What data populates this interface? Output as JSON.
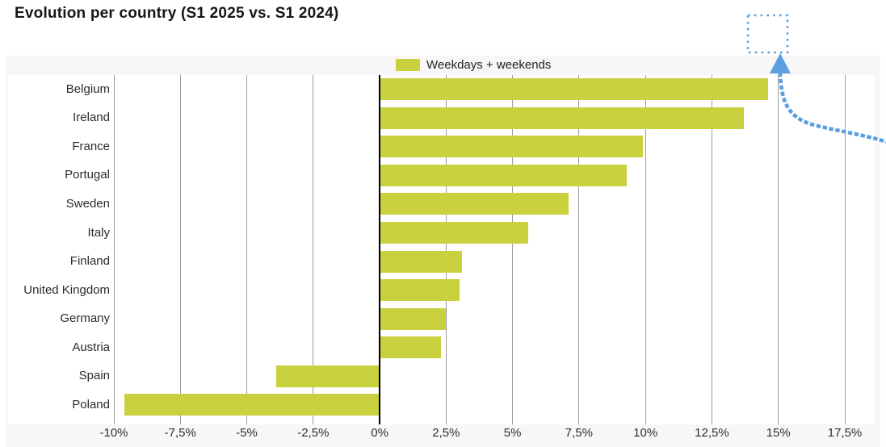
{
  "title": "Evolution per country (S1 2025 vs. S1 2024)",
  "legend": {
    "label": "Weekdays + weekends",
    "swatch_color": "#c9d13e"
  },
  "colors": {
    "bar": "#c9d13e",
    "axis": "#000000",
    "gridline": "#9c9c9c",
    "panel_bg": "#f7f7f7",
    "annotation_blue": "#5b9fe0",
    "text": "#2b2b2b"
  },
  "chart_data": {
    "type": "bar",
    "orientation": "horizontal",
    "title": "Evolution per country (S1 2025 vs. S1 2024)",
    "series_name": "Weekdays + weekends",
    "categories": [
      "Belgium",
      "Ireland",
      "France",
      "Portugal",
      "Sweden",
      "Italy",
      "Finland",
      "United Kingdom",
      "Germany",
      "Austria",
      "Spain",
      "Poland"
    ],
    "values": [
      14.6,
      13.7,
      9.9,
      9.3,
      7.1,
      5.6,
      3.1,
      3.0,
      2.5,
      2.3,
      -3.9,
      -9.6
    ],
    "unit": "%",
    "xlim": [
      -10,
      17.5
    ],
    "x_ticks": [
      -10,
      -7.5,
      -5,
      -2.5,
      0,
      2.5,
      5,
      7.5,
      10,
      12.5,
      15,
      17.5
    ],
    "x_tick_labels": [
      "-10%",
      "-7,5%",
      "-5%",
      "-2,5%",
      "0%",
      "2,5%",
      "5%",
      "7,5%",
      "10%",
      "12,5%",
      "15%",
      "17,5%"
    ],
    "grid": "vertical",
    "legend_position": "top-center",
    "zero_baseline": true
  },
  "annotation": {
    "type": "dotted-square-with-curved-arrow",
    "color": "#5b9fe0"
  }
}
